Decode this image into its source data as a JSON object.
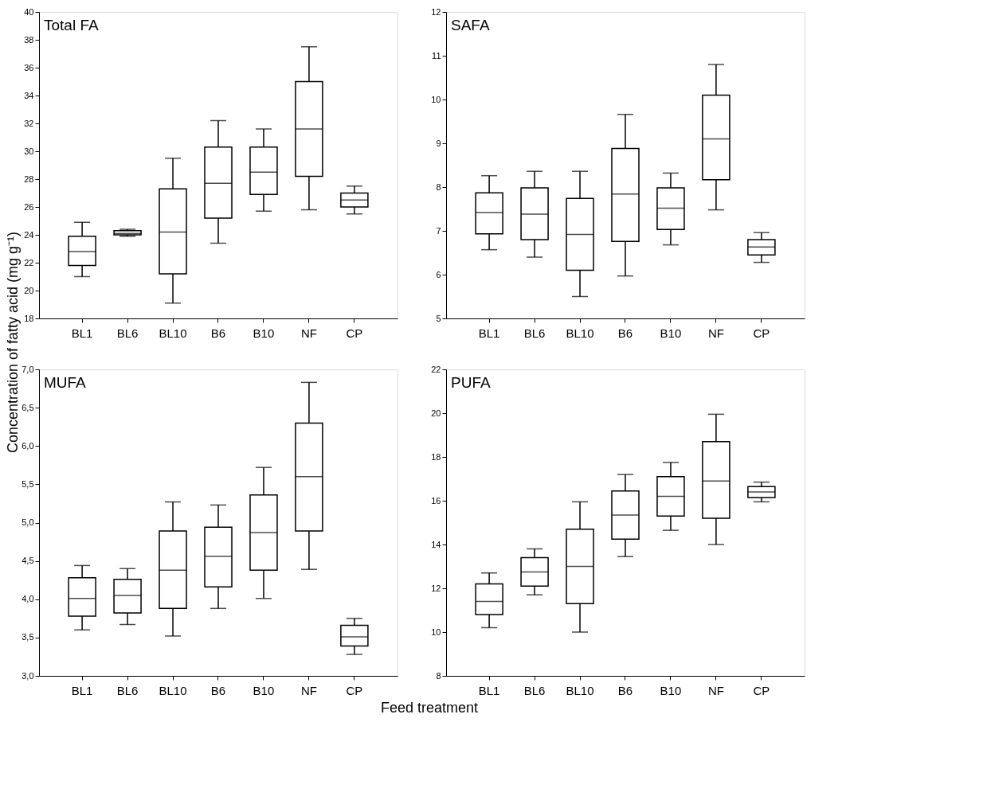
{
  "chart_data": [
    {
      "type": "box",
      "title": "Total FA",
      "ylabel": "Concentration of fatty acid (mg g⁻¹)",
      "categories": [
        "BL1",
        "BL6",
        "BL10",
        "B6",
        "B10",
        "NF",
        "CP"
      ],
      "ylim": [
        18,
        40
      ],
      "yticks": [
        18,
        20,
        22,
        24,
        26,
        28,
        30,
        32,
        34,
        36,
        38,
        40
      ],
      "boxes": [
        {
          "low": 21.0,
          "q1": 21.8,
          "median": 22.8,
          "q3": 23.9,
          "high": 24.9
        },
        {
          "low": 23.9,
          "q1": 24.0,
          "median": 24.1,
          "q3": 24.3,
          "high": 24.4
        },
        {
          "low": 19.1,
          "q1": 21.2,
          "median": 24.2,
          "q3": 27.3,
          "high": 29.5
        },
        {
          "low": 23.4,
          "q1": 25.2,
          "median": 27.7,
          "q3": 30.3,
          "high": 32.2
        },
        {
          "low": 25.7,
          "q1": 26.9,
          "median": 28.5,
          "q3": 30.3,
          "high": 31.6
        },
        {
          "low": 25.8,
          "q1": 28.2,
          "median": 31.6,
          "q3": 35.0,
          "high": 37.5
        },
        {
          "low": 25.5,
          "q1": 26.0,
          "median": 26.5,
          "q3": 27.0,
          "high": 27.5
        }
      ]
    },
    {
      "type": "box",
      "title": "SAFA",
      "categories": [
        "BL1",
        "BL6",
        "BL10",
        "B6",
        "B10",
        "NF",
        "CP"
      ],
      "ylim": [
        5,
        12
      ],
      "yticks": [
        5,
        6,
        7,
        8,
        9,
        10,
        11,
        12
      ],
      "boxes": [
        {
          "low": 6.57,
          "q1": 6.93,
          "median": 7.42,
          "q3": 7.87,
          "high": 8.26
        },
        {
          "low": 6.4,
          "q1": 6.8,
          "median": 7.38,
          "q3": 7.98,
          "high": 8.36
        },
        {
          "low": 5.5,
          "q1": 6.1,
          "median": 6.92,
          "q3": 7.74,
          "high": 8.36
        },
        {
          "low": 5.97,
          "q1": 6.76,
          "median": 7.84,
          "q3": 8.88,
          "high": 9.66
        },
        {
          "low": 6.68,
          "q1": 7.03,
          "median": 7.52,
          "q3": 7.98,
          "high": 8.32
        },
        {
          "low": 7.48,
          "q1": 8.17,
          "median": 9.1,
          "q3": 10.1,
          "high": 10.8
        },
        {
          "low": 6.28,
          "q1": 6.45,
          "median": 6.63,
          "q3": 6.8,
          "high": 6.96
        }
      ]
    },
    {
      "type": "box",
      "title": "MUFA",
      "xlabel": "Feed treatment",
      "categories": [
        "BL1",
        "BL6",
        "BL10",
        "B6",
        "B10",
        "NF",
        "CP"
      ],
      "ylim": [
        3.0,
        7.0
      ],
      "yticks": [
        {
          "value": 3.0,
          "label": "3,0"
        },
        {
          "value": 3.5,
          "label": "3,5"
        },
        {
          "value": 4.0,
          "label": "4,0"
        },
        {
          "value": 4.5,
          "label": "4,5"
        },
        {
          "value": 5.0,
          "label": "5,0"
        },
        {
          "value": 5.5,
          "label": "5,5"
        },
        {
          "value": 6.0,
          "label": "6,0"
        },
        {
          "value": 6.5,
          "label": "6,5"
        },
        {
          "value": 7.0,
          "label": "7,0"
        }
      ],
      "boxes": [
        {
          "low": 3.6,
          "q1": 3.78,
          "median": 4.01,
          "q3": 4.28,
          "high": 4.44
        },
        {
          "low": 3.67,
          "q1": 3.82,
          "median": 4.05,
          "q3": 4.26,
          "high": 4.4
        },
        {
          "low": 3.52,
          "q1": 3.88,
          "median": 4.38,
          "q3": 4.89,
          "high": 5.27
        },
        {
          "low": 3.88,
          "q1": 4.16,
          "median": 4.56,
          "q3": 4.94,
          "high": 5.23
        },
        {
          "low": 4.01,
          "q1": 4.38,
          "median": 4.87,
          "q3": 5.36,
          "high": 5.72
        },
        {
          "low": 4.39,
          "q1": 4.89,
          "median": 5.6,
          "q3": 6.3,
          "high": 6.83
        },
        {
          "low": 3.28,
          "q1": 3.39,
          "median": 3.51,
          "q3": 3.66,
          "high": 3.75
        }
      ]
    },
    {
      "type": "box",
      "title": "PUFA",
      "categories": [
        "BL1",
        "BL6",
        "BL10",
        "B6",
        "B10",
        "NF",
        "CP"
      ],
      "ylim": [
        8,
        22
      ],
      "yticks": [
        8,
        10,
        12,
        14,
        16,
        18,
        20,
        22
      ],
      "boxes": [
        {
          "low": 10.2,
          "q1": 10.8,
          "median": 11.4,
          "q3": 12.2,
          "high": 12.7
        },
        {
          "low": 11.7,
          "q1": 12.1,
          "median": 12.75,
          "q3": 13.4,
          "high": 13.8
        },
        {
          "low": 10.0,
          "q1": 11.3,
          "median": 13.0,
          "q3": 14.7,
          "high": 15.95
        },
        {
          "low": 13.45,
          "q1": 14.25,
          "median": 15.35,
          "q3": 16.45,
          "high": 17.2
        },
        {
          "low": 14.65,
          "q1": 15.3,
          "median": 16.2,
          "q3": 17.1,
          "high": 17.75
        },
        {
          "low": 14.0,
          "q1": 15.2,
          "median": 16.9,
          "q3": 18.7,
          "high": 19.95
        },
        {
          "low": 15.95,
          "q1": 16.15,
          "median": 16.4,
          "q3": 16.65,
          "high": 16.85
        }
      ]
    }
  ]
}
